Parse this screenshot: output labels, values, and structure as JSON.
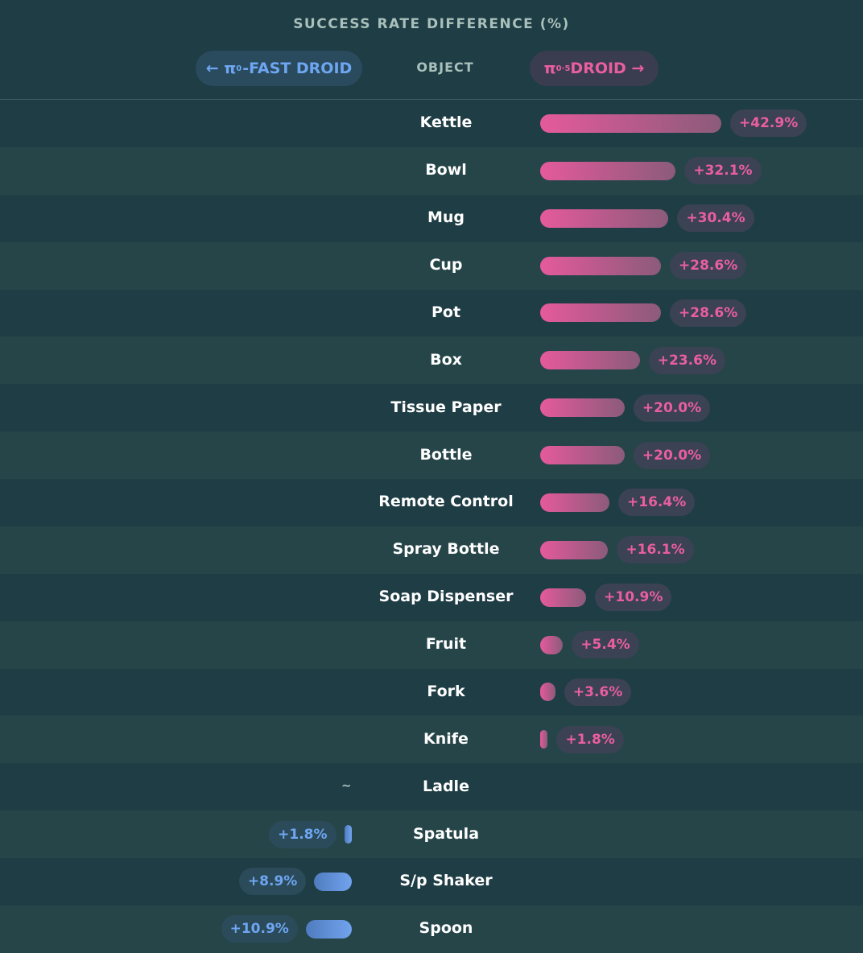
{
  "header": {
    "title": "SUCCESS RATE DIFFERENCE (%)",
    "left_prefix": "← π",
    "left_sub": "0",
    "left_suffix": "-FAST DROID",
    "column_label": "OBJECT",
    "right_prefix": "π",
    "right_sub": "0",
    "right_dot": "·",
    "right_sub2": "5",
    "right_suffix": " DROID →"
  },
  "colors": {
    "background": "#1f3d45",
    "pi05_droid": "#ea5ea0",
    "pi0_fast_droid": "#6ea6f2"
  },
  "chart_data": {
    "type": "bar",
    "orientation": "diverging-horizontal",
    "title": "SUCCESS RATE DIFFERENCE (%)",
    "category_label": "OBJECT",
    "left_series": "π0-FAST DROID",
    "right_series": "π0.5 DROID",
    "xlim": [
      0,
      42.9
    ],
    "rows": [
      {
        "object": "Kettle",
        "side": "right",
        "value": 42.9,
        "label": "+42.9%"
      },
      {
        "object": "Bowl",
        "side": "right",
        "value": 32.1,
        "label": "+32.1%"
      },
      {
        "object": "Mug",
        "side": "right",
        "value": 30.4,
        "label": "+30.4%"
      },
      {
        "object": "Cup",
        "side": "right",
        "value": 28.6,
        "label": "+28.6%"
      },
      {
        "object": "Pot",
        "side": "right",
        "value": 28.6,
        "label": "+28.6%"
      },
      {
        "object": "Box",
        "side": "right",
        "value": 23.6,
        "label": "+23.6%"
      },
      {
        "object": "Tissue Paper",
        "side": "right",
        "value": 20.0,
        "label": "+20.0%"
      },
      {
        "object": "Bottle",
        "side": "right",
        "value": 20.0,
        "label": "+20.0%"
      },
      {
        "object": "Remote Control",
        "side": "right",
        "value": 16.4,
        "label": "+16.4%"
      },
      {
        "object": "Spray Bottle",
        "side": "right",
        "value": 16.1,
        "label": "+16.1%"
      },
      {
        "object": "Soap Dispenser",
        "side": "right",
        "value": 10.9,
        "label": "+10.9%"
      },
      {
        "object": "Fruit",
        "side": "right",
        "value": 5.4,
        "label": "+5.4%"
      },
      {
        "object": "Fork",
        "side": "right",
        "value": 3.6,
        "label": "+3.6%"
      },
      {
        "object": "Knife",
        "side": "right",
        "value": 1.8,
        "label": "+1.8%"
      },
      {
        "object": "Ladle",
        "side": "none",
        "value": 0,
        "label": "~"
      },
      {
        "object": "Spatula",
        "side": "left",
        "value": 1.8,
        "label": "+1.8%"
      },
      {
        "object": "S/p Shaker",
        "side": "left",
        "value": 8.9,
        "label": "+8.9%"
      },
      {
        "object": "Spoon",
        "side": "left",
        "value": 10.9,
        "label": "+10.9%"
      }
    ]
  }
}
